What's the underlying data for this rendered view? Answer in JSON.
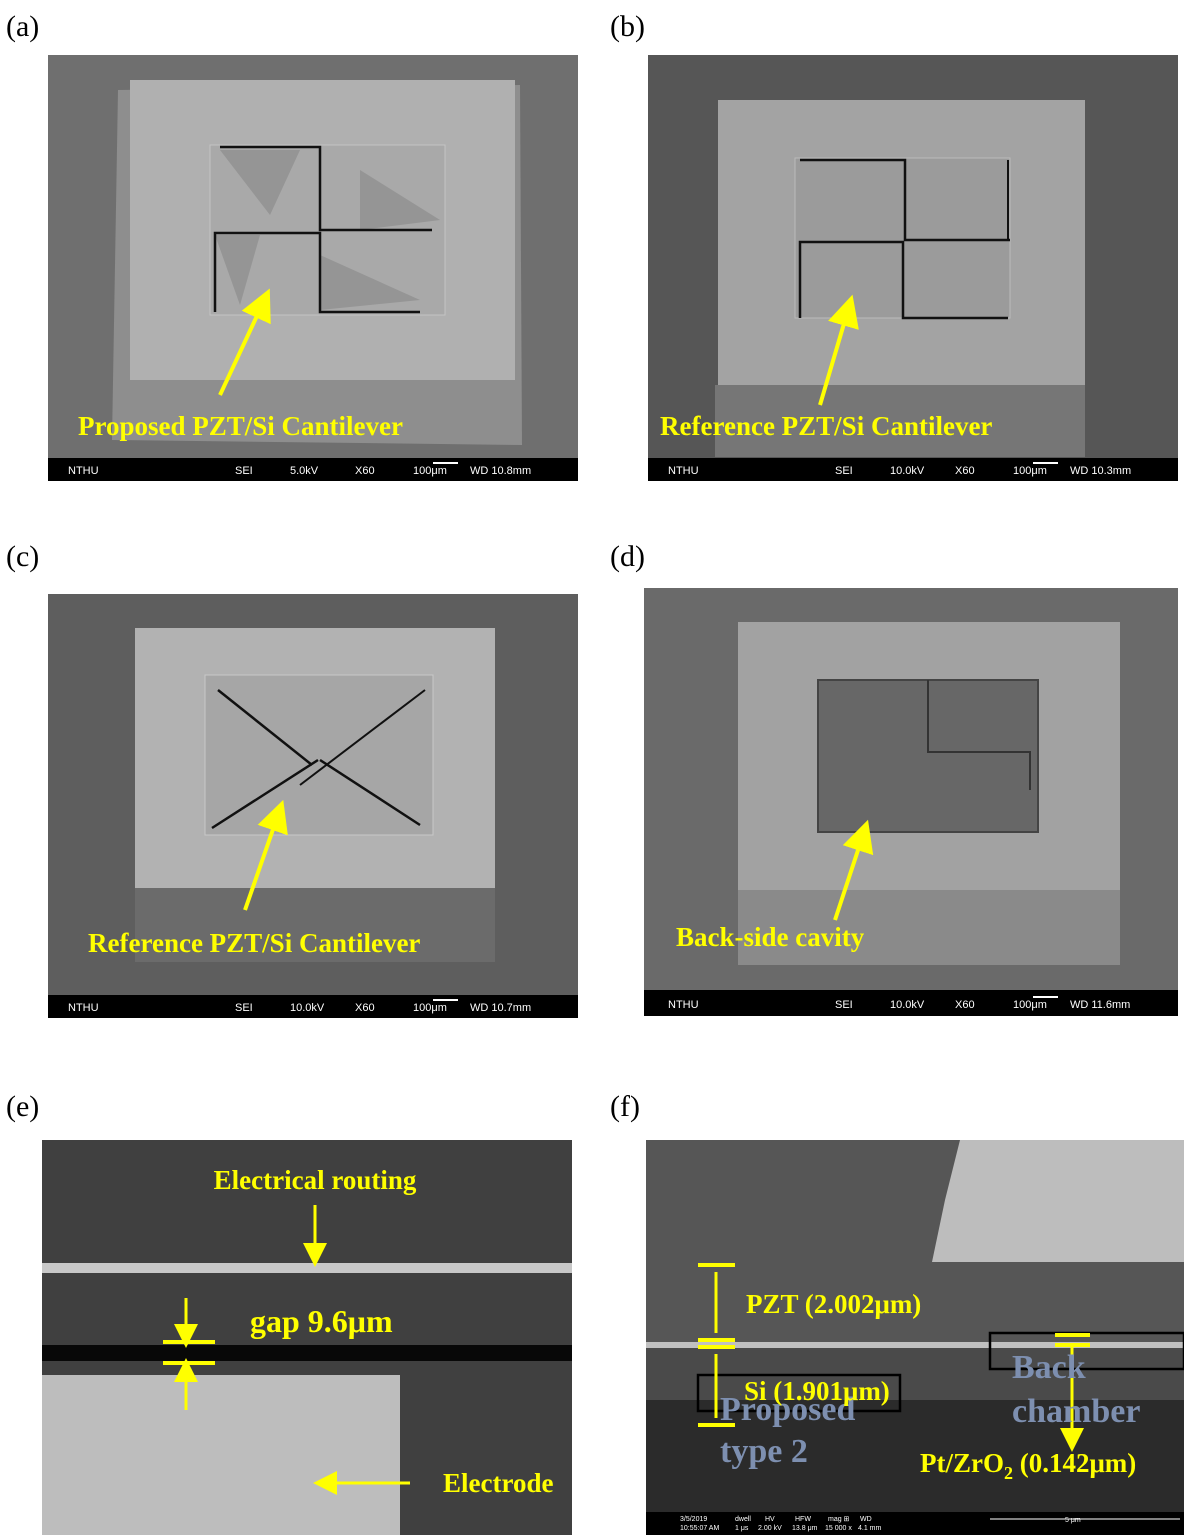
{
  "panels": {
    "a": {
      "label": "(a)",
      "annotation": "Proposed PZT/Si Cantilever",
      "scalebar": [
        "NTHU",
        "SEI",
        "5.0kV",
        "X60",
        "100μm",
        "WD 10.8mm"
      ]
    },
    "b": {
      "label": "(b)",
      "annotation": "Reference PZT/Si Cantilever",
      "scalebar": [
        "NTHU",
        "SEI",
        "10.0kV",
        "X60",
        "100μm",
        "WD 10.3mm"
      ]
    },
    "c": {
      "label": "(c)",
      "annotation": "Reference PZT/Si Cantilever",
      "scalebar": [
        "NTHU",
        "SEI",
        "10.0kV",
        "X60",
        "100μm",
        "WD 10.7mm"
      ]
    },
    "d": {
      "label": "(d)",
      "annotation": "Back-side cavity",
      "scalebar": [
        "NTHU",
        "SEI",
        "10.0kV",
        "X60",
        "100μm",
        "WD 11.6mm"
      ]
    },
    "e": {
      "label": "(e)",
      "routing": "Electrical routing",
      "gap": "gap 9.6μm",
      "electrode": "Electrode"
    },
    "f": {
      "label": "(f)",
      "pzt": "PZT (2.002μm)",
      "si": "Si (1.901μm)",
      "proposed": [
        "Proposed",
        "type 2"
      ],
      "back": [
        "Back",
        "chamber"
      ],
      "ptzr": [
        "Pt/ZrO",
        "2",
        " (0.142μm)"
      ],
      "infobar": [
        "3/5/2019",
        "10:55:07 AM",
        "dwell",
        "1 μs",
        "HV",
        "2.00 kV",
        "HFW",
        "13.8 μm",
        "mag ⊞",
        "15 000 x",
        "WD",
        "4.1 mm",
        "5 μm"
      ]
    }
  }
}
